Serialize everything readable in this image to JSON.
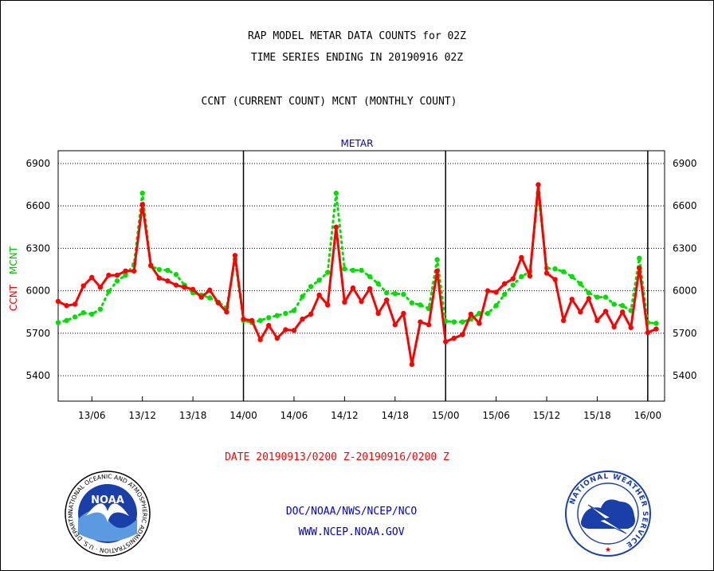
{
  "header": {
    "title": "RAP MODEL METAR DATA COUNTS for 02Z",
    "subtitle": "TIME SERIES ENDING IN 20190916 02Z",
    "legend_line": "CCNT (CURRENT COUNT) MCNT (MONTHLY COUNT)"
  },
  "chart_data": {
    "type": "line",
    "title": "METAR",
    "ylabel_left_ccnt": "CCNT",
    "ylabel_left_mcnt": "MCNT",
    "ylim": [
      5220,
      6990
    ],
    "yticks": [
      5400,
      5700,
      6000,
      6300,
      6600,
      6900
    ],
    "ytick_labels": [
      "5400",
      "5700",
      "6000",
      "6300",
      "6600",
      "6900"
    ],
    "x_hours_range": [
      0,
      72
    ],
    "xticks": [
      {
        "hour": 4,
        "label": "13/06"
      },
      {
        "hour": 10,
        "label": "13/12"
      },
      {
        "hour": 16,
        "label": "13/18"
      },
      {
        "hour": 22,
        "label": "14/00"
      },
      {
        "hour": 28,
        "label": "14/06"
      },
      {
        "hour": 34,
        "label": "14/12"
      },
      {
        "hour": 40,
        "label": "14/18"
      },
      {
        "hour": 46,
        "label": "15/00"
      },
      {
        "hour": 52,
        "label": "15/06"
      },
      {
        "hour": 58,
        "label": "15/12"
      },
      {
        "hour": 64,
        "label": "15/18"
      },
      {
        "hour": 70,
        "label": "16/00"
      }
    ],
    "day_boundaries_hours": [
      22,
      46,
      70
    ],
    "grid": true,
    "series": [
      {
        "name": "CCNT",
        "color": "#ff0000",
        "values": [
          5925,
          5895,
          5905,
          6035,
          6095,
          6025,
          6110,
          6110,
          6140,
          6140,
          6610,
          6180,
          6090,
          6070,
          6040,
          6025,
          6010,
          5955,
          6005,
          5915,
          5850,
          6250,
          5800,
          5790,
          5655,
          5755,
          5665,
          5725,
          5720,
          5800,
          5835,
          5970,
          5900,
          6450,
          5920,
          6020,
          5925,
          6015,
          5840,
          5935,
          5760,
          5840,
          5480,
          5780,
          5760,
          6140,
          5640,
          5665,
          5690,
          5835,
          5770,
          6000,
          5990,
          6050,
          6085,
          6235,
          6105,
          6750,
          6125,
          6080,
          5790,
          5940,
          5850,
          5945,
          5790,
          5855,
          5745,
          5850,
          5740,
          6160,
          5705,
          5730
        ]
      },
      {
        "name": "MCNT",
        "color": "#00e000",
        "values": [
          5775,
          5790,
          5815,
          5845,
          5835,
          5870,
          5995,
          6070,
          6110,
          6185,
          6690,
          6175,
          6150,
          6145,
          6115,
          6040,
          5985,
          5970,
          5950,
          5920,
          5880,
          6225,
          5790,
          5775,
          5790,
          5810,
          5825,
          5840,
          5860,
          5960,
          6030,
          6075,
          6130,
          6690,
          6155,
          6145,
          6145,
          6100,
          6050,
          5985,
          5980,
          5975,
          5915,
          5900,
          5875,
          6220,
          5785,
          5780,
          5780,
          5800,
          5840,
          5840,
          5895,
          5975,
          6040,
          6100,
          6135,
          6690,
          6160,
          6155,
          6135,
          6100,
          6050,
          5985,
          5955,
          5955,
          5905,
          5895,
          5860,
          6230,
          5775,
          5770
        ]
      }
    ]
  },
  "footer": {
    "date_range": "DATE 20190913/0200 Z-20190916/0200 Z",
    "org_line": "DOC/NOAA/NWS/NCEP/NCO",
    "url": "WWW.NCEP.NOAA.GOV"
  },
  "logos": {
    "left_text": "NOAA",
    "left_ring_text": "NATIONAL OCEANIC AND ATMOSPHERIC ADMINISTRATION · U.S. DEPARTMENT OF COMMERCE",
    "right_ring_text": "NATIONAL WEATHER SERVICE"
  },
  "colors": {
    "ccnt": "#ff0000",
    "mcnt": "#00e000",
    "title_blue": "#0000cc",
    "footer_red": "#ff0000",
    "footer_blue": "#0000cc"
  }
}
